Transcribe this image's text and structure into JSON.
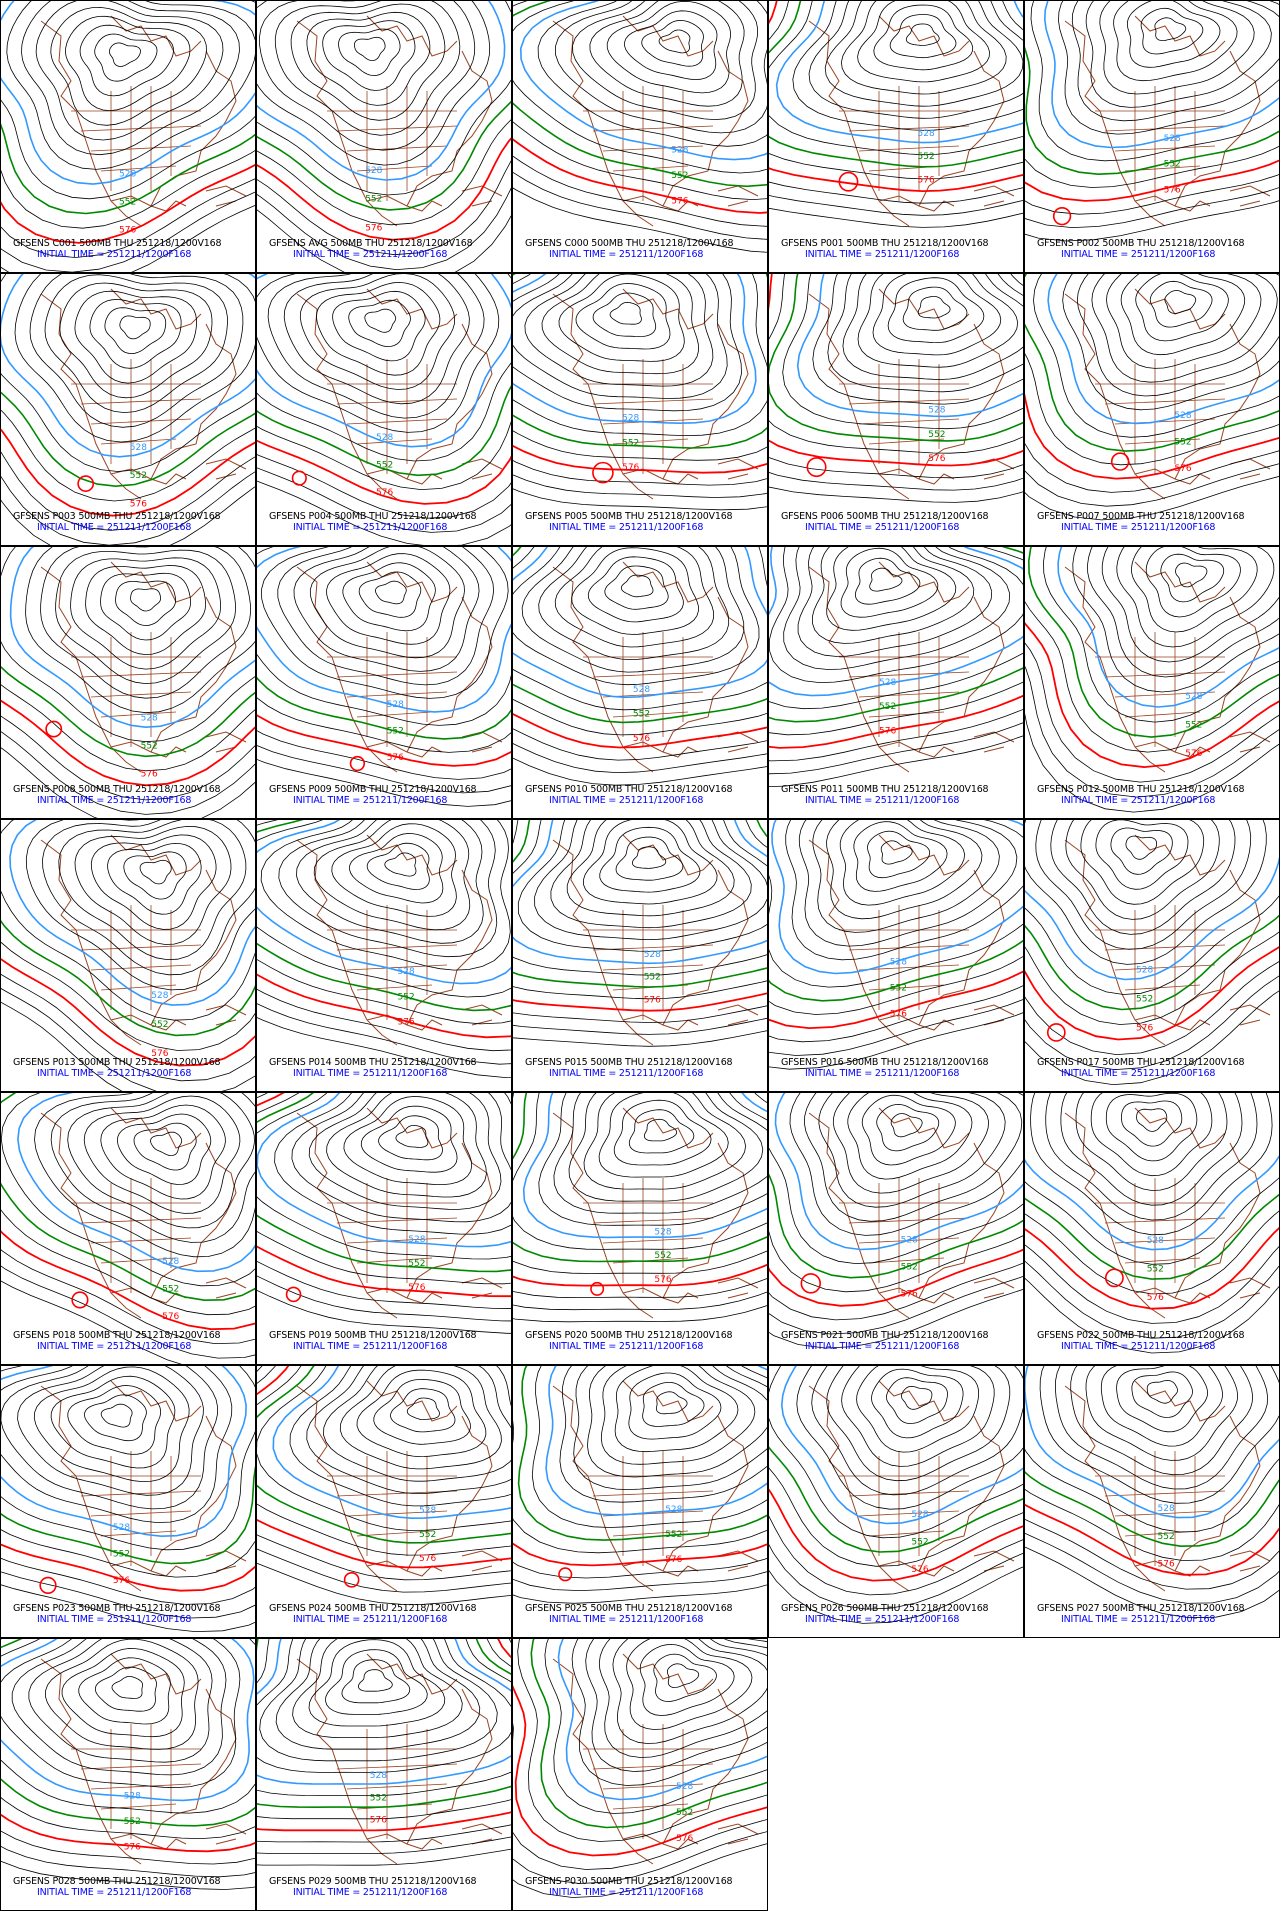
{
  "colors": {
    "contour": "#000000",
    "c528": "#3399ff",
    "c552": "#008800",
    "c576": "#ff0000",
    "coast": "#994422",
    "init_text": "#0000ff"
  },
  "contour_labels": {
    "c528": "528",
    "c552": "552",
    "c576": "576"
  },
  "panels": [
    {
      "member": "C001",
      "title": "GFSENS C001 500MB THU 251218/1200V168",
      "init": "INITIAL TIME = 251211/1200F168"
    },
    {
      "member": "AVG",
      "title": "GFSENS AVG 500MB THU 251218/1200V168",
      "init": "INITIAL TIME = 251211/1200F168"
    },
    {
      "member": "C000",
      "title": "GFSENS C000 500MB THU 251218/1200V168",
      "init": "INITIAL TIME = 251211/1200F168"
    },
    {
      "member": "P001",
      "title": "GFSENS P001 500MB THU 251218/1200V168",
      "init": "INITIAL TIME = 251211/1200F168"
    },
    {
      "member": "P002",
      "title": "GFSENS P002 500MB THU 251218/1200V168",
      "init": "INITIAL TIME = 251211/1200F168"
    },
    {
      "member": "P003",
      "title": "GFSENS P003 500MB THU 251218/1200V168",
      "init": "INITIAL TIME = 251211/1200F168"
    },
    {
      "member": "P004",
      "title": "GFSENS P004 500MB THU 251218/1200V168",
      "init": "INITIAL TIME = 251211/1200F168"
    },
    {
      "member": "P005",
      "title": "GFSENS P005 500MB THU 251218/1200V168",
      "init": "INITIAL TIME = 251211/1200F168"
    },
    {
      "member": "P006",
      "title": "GFSENS P006 500MB THU 251218/1200V168",
      "init": "INITIAL TIME = 251211/1200F168"
    },
    {
      "member": "P007",
      "title": "GFSENS P007 500MB THU 251218/1200V168",
      "init": "INITIAL TIME = 251211/1200F168"
    },
    {
      "member": "P008",
      "title": "GFSENS P008 500MB THU 251218/1200V168",
      "init": "INITIAL TIME = 251211/1200F168"
    },
    {
      "member": "P009",
      "title": "GFSENS P009 500MB THU 251218/1200V168",
      "init": "INITIAL TIME = 251211/1200F168"
    },
    {
      "member": "P010",
      "title": "GFSENS P010 500MB THU 251218/1200V168",
      "init": "INITIAL TIME = 251211/1200F168"
    },
    {
      "member": "P011",
      "title": "GFSENS P011 500MB THU 251218/1200V168",
      "init": "INITIAL TIME = 251211/1200F168"
    },
    {
      "member": "P012",
      "title": "GFSENS P012 500MB THU 251218/1200V168",
      "init": "INITIAL TIME = 251211/1200F168"
    },
    {
      "member": "P013",
      "title": "GFSENS P013 500MB THU 251218/1200V168",
      "init": "INITIAL TIME = 251211/1200F168"
    },
    {
      "member": "P014",
      "title": "GFSENS P014 500MB THU 251218/1200V168",
      "init": "INITIAL TIME = 251211/1200F168"
    },
    {
      "member": "P015",
      "title": "GFSENS P015 500MB THU 251218/1200V168",
      "init": "INITIAL TIME = 251211/1200F168"
    },
    {
      "member": "P016",
      "title": "GFSENS P016 500MB THU 251218/1200V168",
      "init": "INITIAL TIME = 251211/1200F168"
    },
    {
      "member": "P017",
      "title": "GFSENS P017 500MB THU 251218/1200V168",
      "init": "INITIAL TIME = 251211/1200F168"
    },
    {
      "member": "P018",
      "title": "GFSENS P018 500MB THU 251218/1200V168",
      "init": "INITIAL TIME = 251211/1200F168"
    },
    {
      "member": "P019",
      "title": "GFSENS P019 500MB THU 251218/1200V168",
      "init": "INITIAL TIME = 251211/1200F168"
    },
    {
      "member": "P020",
      "title": "GFSENS P020 500MB THU 251218/1200V168",
      "init": "INITIAL TIME = 251211/1200F168"
    },
    {
      "member": "P021",
      "title": "GFSENS P021 500MB THU 251218/1200V168",
      "init": "INITIAL TIME = 251211/1200F168"
    },
    {
      "member": "P022",
      "title": "GFSENS P022 500MB THU 251218/1200V168",
      "init": "INITIAL TIME = 251211/1200F168"
    },
    {
      "member": "P023",
      "title": "GFSENS P023 500MB THU 251218/1200V168",
      "init": "INITIAL TIME = 251211/1200F168"
    },
    {
      "member": "P024",
      "title": "GFSENS P024 500MB THU 251218/1200V168",
      "init": "INITIAL TIME = 251211/1200F168"
    },
    {
      "member": "P025",
      "title": "GFSENS P025 500MB THU 251218/1200V168",
      "init": "INITIAL TIME = 251211/1200F168"
    },
    {
      "member": "P026",
      "title": "GFSENS P026 500MB THU 251218/1200V168",
      "init": "INITIAL TIME = 251211/1200F168"
    },
    {
      "member": "P027",
      "title": "GFSENS P027 500MB THU 251218/1200V168",
      "init": "INITIAL TIME = 251211/1200F168"
    },
    {
      "member": "P028",
      "title": "GFSENS P028 500MB THU 251218/1200V168",
      "init": "INITIAL TIME = 251211/1200F168"
    },
    {
      "member": "P029",
      "title": "GFSENS P029 500MB THU 251218/1200V168",
      "init": "INITIAL TIME = 251211/1200F168"
    },
    {
      "member": "P030",
      "title": "GFSENS P030 500MB THU 251218/1200V168",
      "init": "INITIAL TIME = 251211/1200F168"
    }
  ]
}
